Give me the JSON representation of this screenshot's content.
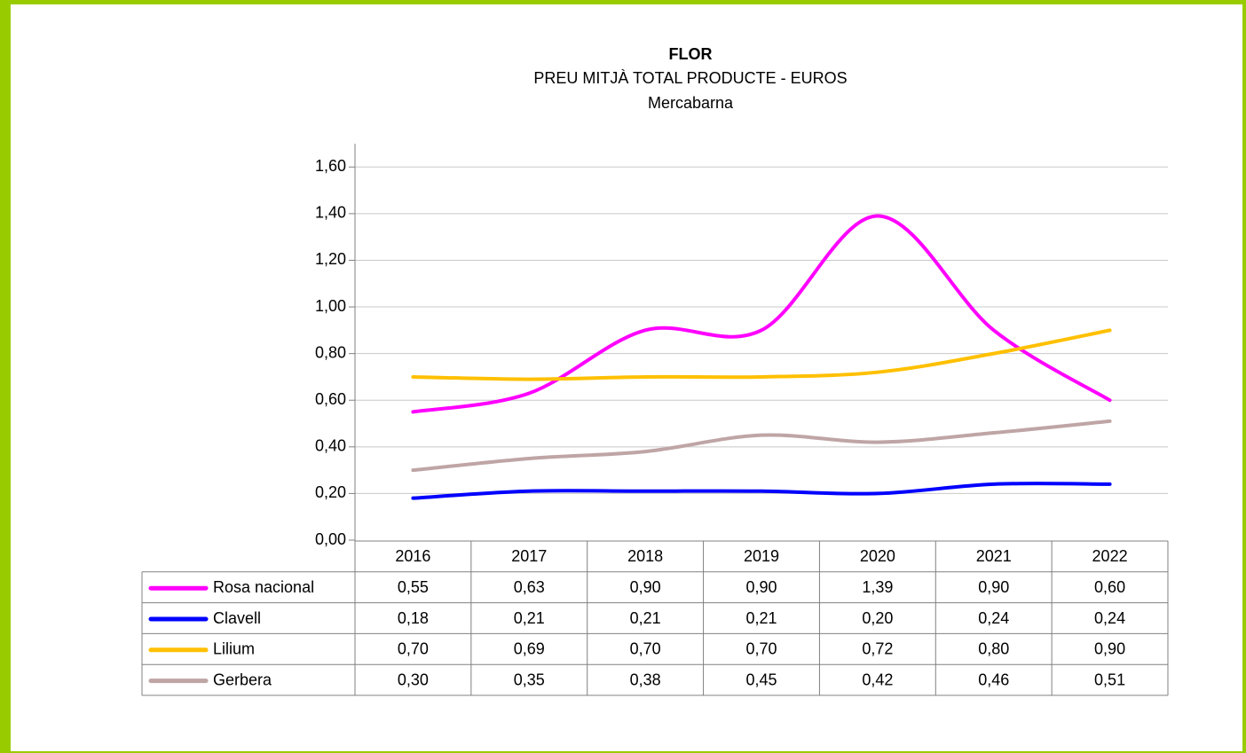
{
  "chart_data": {
    "type": "line",
    "title": "FLOR",
    "subtitle": "PREU MITJÀ TOTAL PRODUCTE - EUROS",
    "subtitle2": "Mercabarna",
    "categories": [
      "2016",
      "2017",
      "2018",
      "2019",
      "2020",
      "2021",
      "2022"
    ],
    "series": [
      {
        "name": "Rosa nacional",
        "color": "#ff00ff",
        "values": [
          0.55,
          0.63,
          0.9,
          0.9,
          1.39,
          0.9,
          0.6
        ],
        "value_labels": [
          "0,55",
          "0,63",
          "0,90",
          "0,90",
          "1,39",
          "0,90",
          "0,60"
        ]
      },
      {
        "name": "Clavell",
        "color": "#0000ff",
        "values": [
          0.18,
          0.21,
          0.21,
          0.21,
          0.2,
          0.24,
          0.24
        ],
        "value_labels": [
          "0,18",
          "0,21",
          "0,21",
          "0,21",
          "0,20",
          "0,24",
          "0,24"
        ]
      },
      {
        "name": "Lilium",
        "color": "#ffc000",
        "values": [
          0.7,
          0.69,
          0.7,
          0.7,
          0.72,
          0.8,
          0.9
        ],
        "value_labels": [
          "0,70",
          "0,69",
          "0,70",
          "0,70",
          "0,72",
          "0,80",
          "0,90"
        ]
      },
      {
        "name": "Gerbera",
        "color": "#bfa5a5",
        "values": [
          0.3,
          0.35,
          0.38,
          0.45,
          0.42,
          0.46,
          0.51
        ],
        "value_labels": [
          "0,30",
          "0,35",
          "0,38",
          "0,45",
          "0,42",
          "0,46",
          "0,51"
        ]
      }
    ],
    "ylim": [
      0,
      1.7
    ],
    "yticks": [
      {
        "value": 0,
        "label": "0,00"
      },
      {
        "value": 0.2,
        "label": "0,20"
      },
      {
        "value": 0.4,
        "label": "0,40"
      },
      {
        "value": 0.6,
        "label": "0,60"
      },
      {
        "value": 0.8,
        "label": "0,80"
      },
      {
        "value": 1.0,
        "label": "1,00"
      },
      {
        "value": 1.2,
        "label": "1,20"
      },
      {
        "value": 1.4,
        "label": "1,40"
      },
      {
        "value": 1.6,
        "label": "1,60"
      }
    ],
    "grid": true,
    "smooth": true
  }
}
